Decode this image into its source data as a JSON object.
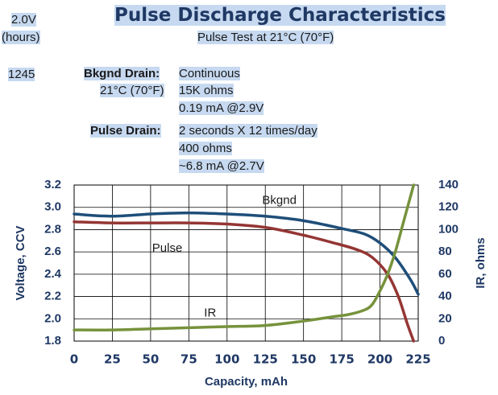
{
  "header": {
    "cutoff_value": "2.0V",
    "cutoff_unit": "(hours)",
    "hours_value": "1245",
    "title": "Pulse Discharge Characteristics",
    "subtitle": "Pulse Test at 21°C (70°F)"
  },
  "conditions": {
    "bkgnd_label": "Bkgnd Drain:",
    "bkgnd_temp": "21°C (70°F)",
    "bkgnd_lines": [
      "Continuous",
      "15K ohms",
      "0.19 mA @2.9V"
    ],
    "pulse_label": "Pulse Drain:",
    "pulse_lines": [
      "2 seconds X 12 times/day",
      "400 ohms",
      "~6.8 mA @2.7V"
    ]
  },
  "colors": {
    "bkgnd": "#1f4e79",
    "pulse": "#943634",
    "ir": "#76923c",
    "axis_text": "#1f3864",
    "highlight": "#c6d9f0"
  },
  "chart_data": {
    "type": "line",
    "xlabel": "Capacity, mAh",
    "ylabel": "Voltage, CCV",
    "y2label": "IR, ohms",
    "xlim": [
      0,
      225
    ],
    "ylim": [
      1.8,
      3.2
    ],
    "y2lim": [
      0,
      140
    ],
    "x_ticks": [
      "0",
      "25",
      "50",
      "75",
      "100",
      "125",
      "150",
      "175",
      "200",
      "225"
    ],
    "y_ticks": [
      "3.2",
      "3.0",
      "2.8",
      "2.6",
      "2.4",
      "2.2",
      "2.0",
      "1.8"
    ],
    "y2_ticks": [
      "140",
      "120",
      "100",
      "80",
      "60",
      "40",
      "20",
      "0"
    ],
    "grid": true,
    "series": [
      {
        "name": "Bkgnd",
        "axis": "left",
        "x": [
          0,
          25,
          50,
          75,
          100,
          125,
          150,
          175,
          190,
          200,
          210,
          220,
          225
        ],
        "values": [
          2.94,
          2.92,
          2.94,
          2.95,
          2.94,
          2.92,
          2.88,
          2.81,
          2.76,
          2.68,
          2.55,
          2.35,
          2.22
        ]
      },
      {
        "name": "Pulse",
        "axis": "left",
        "x": [
          0,
          25,
          50,
          75,
          100,
          125,
          150,
          170,
          185,
          195,
          205,
          212,
          218,
          222
        ],
        "values": [
          2.87,
          2.86,
          2.86,
          2.86,
          2.85,
          2.82,
          2.75,
          2.68,
          2.62,
          2.55,
          2.4,
          2.2,
          1.95,
          1.8
        ]
      },
      {
        "name": "IR",
        "axis": "right",
        "x": [
          0,
          25,
          50,
          75,
          100,
          125,
          150,
          170,
          180,
          190,
          195,
          200,
          205,
          210,
          215,
          220,
          222
        ],
        "values": [
          10,
          10,
          11,
          12,
          13,
          14,
          18,
          22,
          24,
          28,
          33,
          45,
          60,
          80,
          105,
          130,
          140
        ]
      }
    ],
    "annotations": [
      {
        "text": "Bkgnd",
        "x": 123,
        "y": 3.06
      },
      {
        "text": "Pulse",
        "x": 51,
        "y": 2.63
      },
      {
        "text": "IR",
        "x": 85,
        "y": 2.05
      }
    ]
  }
}
